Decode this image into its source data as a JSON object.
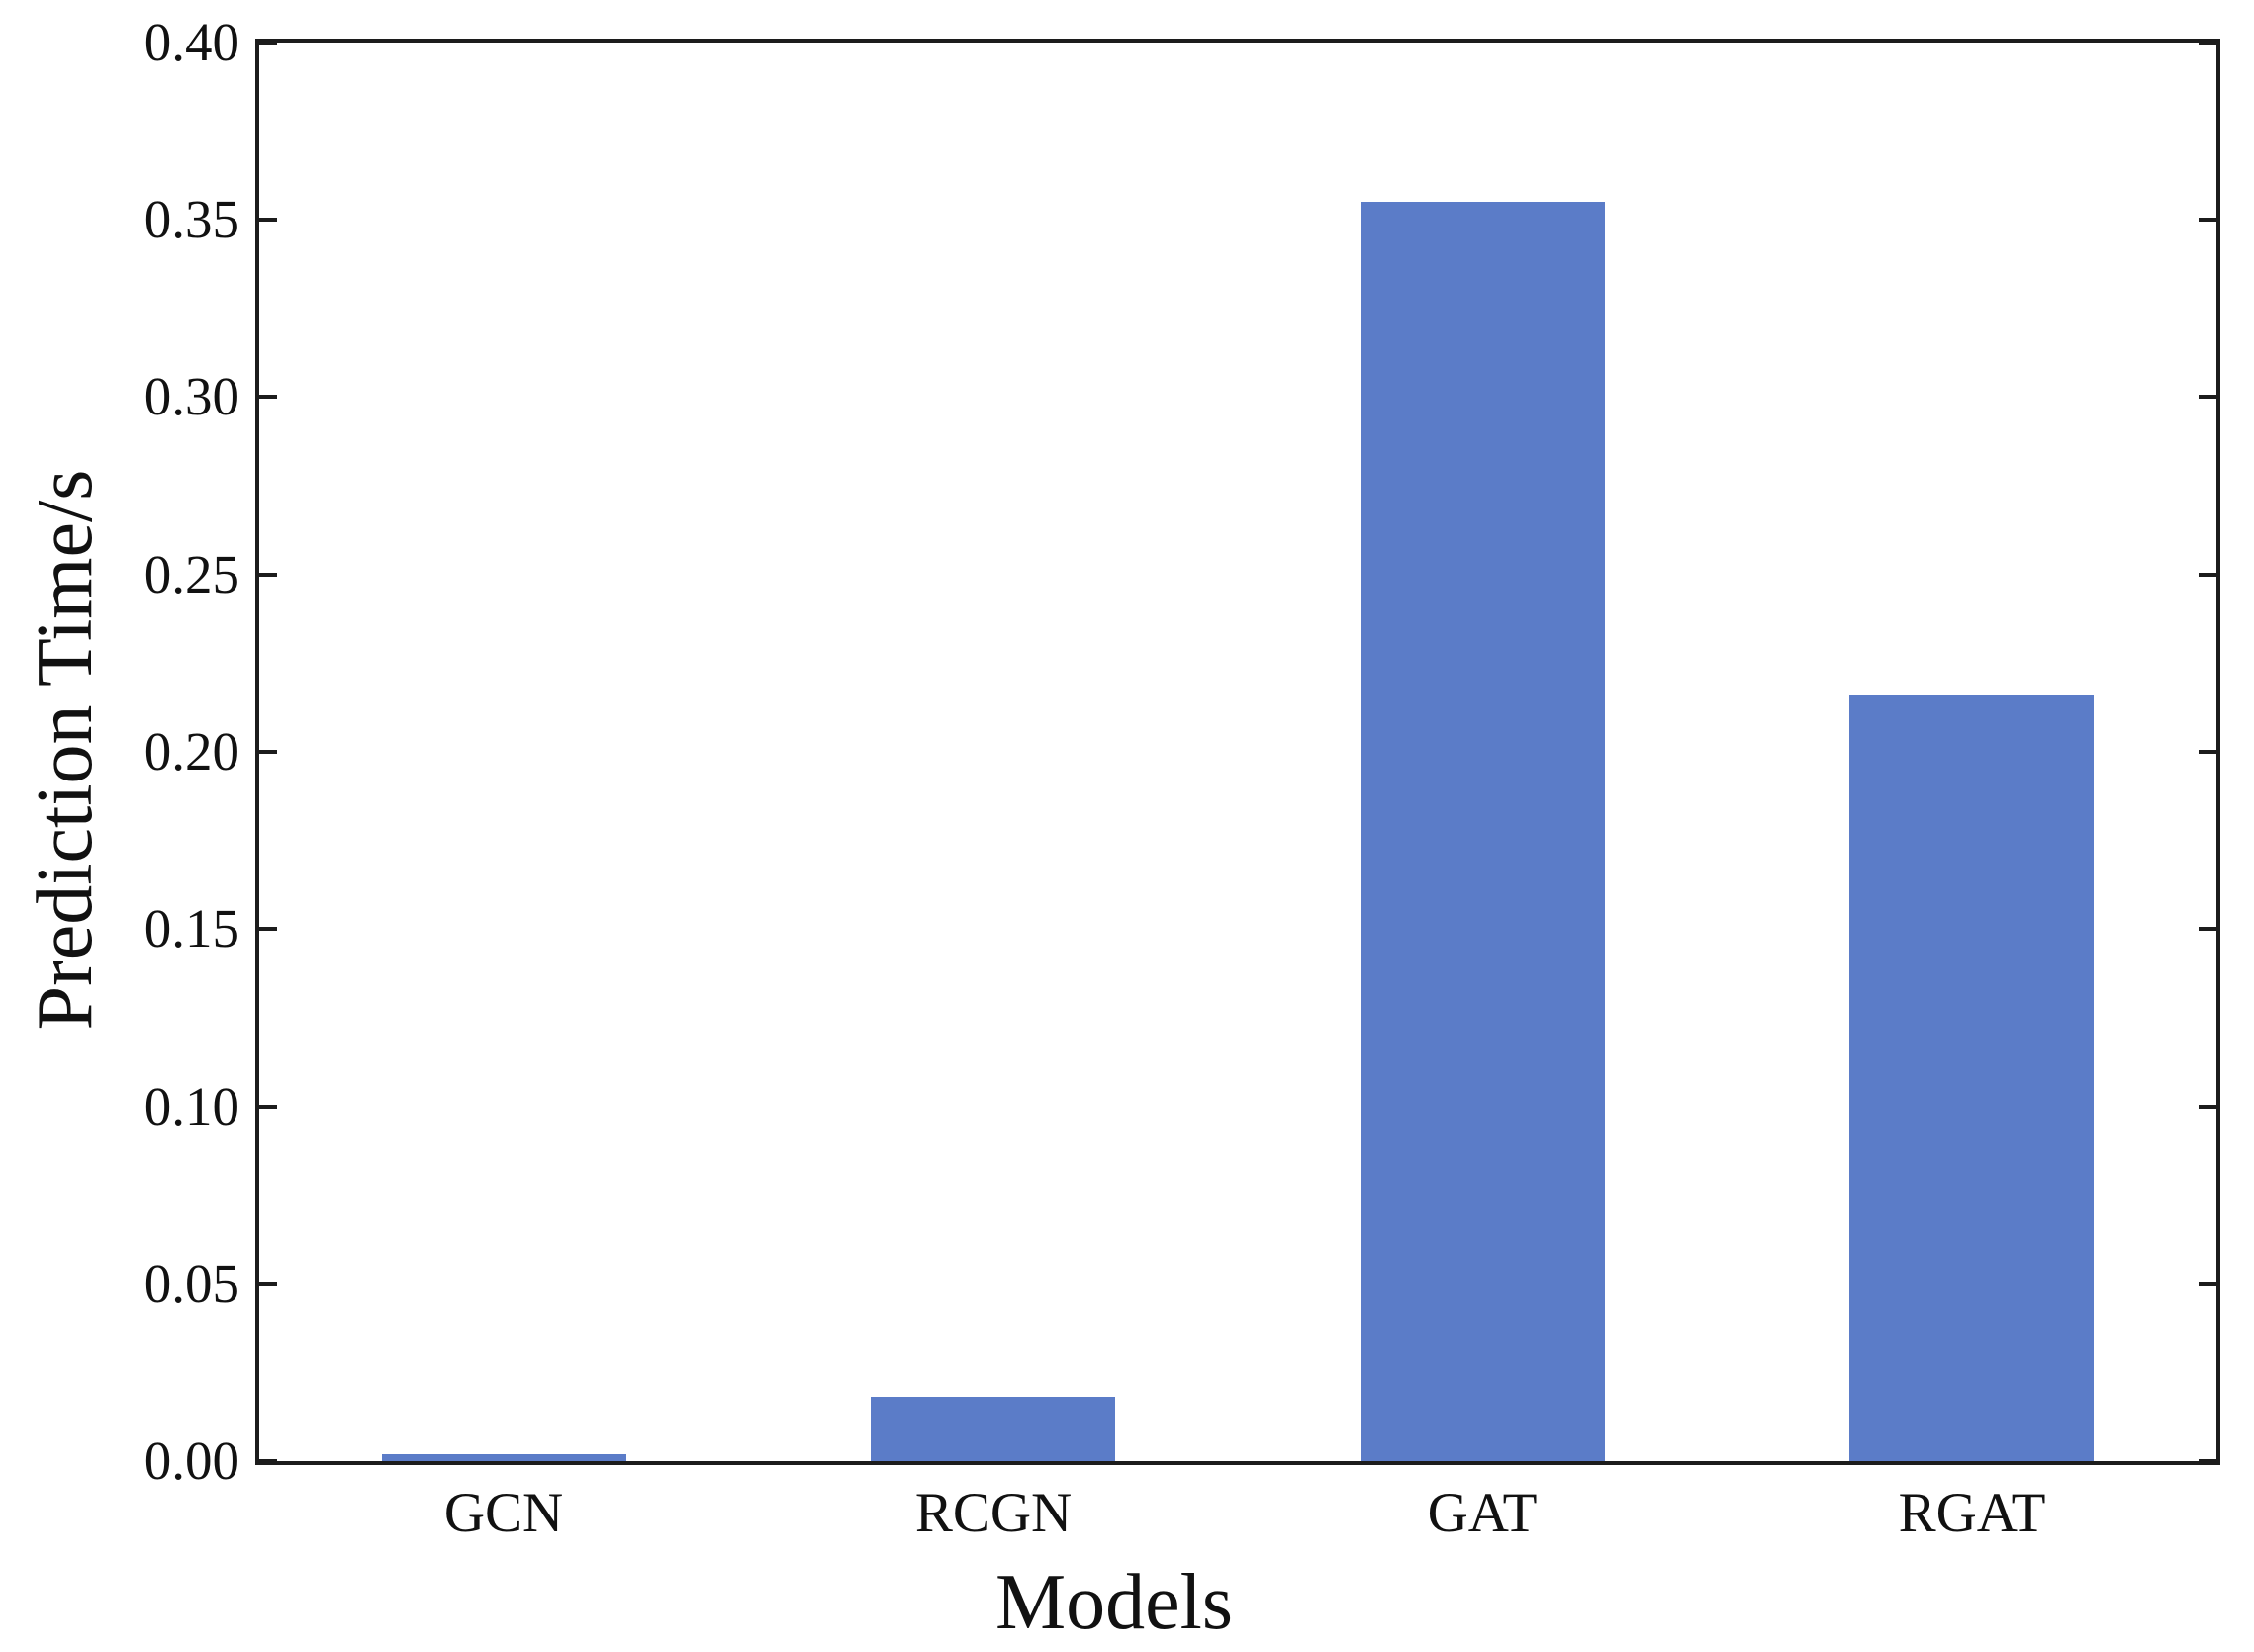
{
  "chart_data": {
    "type": "bar",
    "title": "",
    "xlabel": "Models",
    "ylabel": "Prediction Time/s",
    "categories": [
      "GCN",
      "RCGN",
      "GAT",
      "RGAT"
    ],
    "values": [
      0.002,
      0.018,
      0.355,
      0.216
    ],
    "ylim": [
      0.0,
      0.4
    ],
    "ytick_step": 0.05,
    "ytick_labels": [
      "0.00",
      "0.05",
      "0.10",
      "0.15",
      "0.20",
      "0.25",
      "0.30",
      "0.35",
      "0.40"
    ],
    "grid": false,
    "legend": "none",
    "ticks_direction": "in",
    "ticks_sides": "left-and-right",
    "bar_color": "#5b7cc8",
    "axis_color": "#1c1c1c",
    "text_color": "#111111",
    "background_color": "#ffffff"
  }
}
